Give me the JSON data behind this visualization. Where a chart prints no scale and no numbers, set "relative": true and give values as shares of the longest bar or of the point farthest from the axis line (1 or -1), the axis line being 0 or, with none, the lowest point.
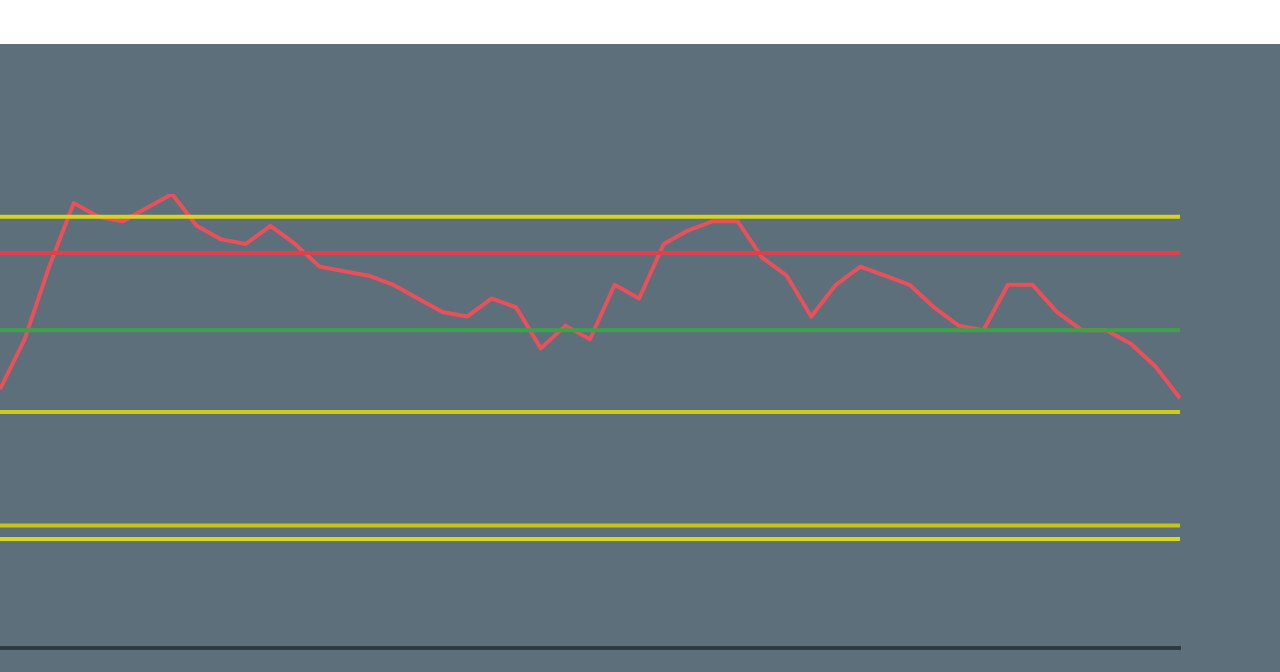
{
  "chart_data": {
    "type": "line",
    "relative": true,
    "legend": false,
    "marker": "none",
    "categories": [
      null,
      null,
      null,
      null,
      null,
      null,
      null,
      null,
      null,
      null,
      null,
      null,
      null,
      null,
      null,
      null,
      null,
      null,
      null,
      null,
      null,
      null,
      null,
      null,
      null,
      null,
      null,
      null,
      null,
      null,
      null,
      null,
      null,
      null,
      null,
      null,
      null,
      null,
      null,
      null,
      null,
      null,
      null,
      null,
      null,
      null,
      null,
      null,
      null
    ],
    "series": [
      {
        "color": "#d6d21e",
        "values": [
          0.95,
          0.95,
          0.95,
          0.95,
          0.95,
          0.95,
          0.95,
          0.95,
          0.95,
          0.95,
          0.95,
          0.95,
          0.95,
          0.95,
          0.95,
          0.95,
          0.95,
          0.95,
          0.95,
          0.95,
          0.95,
          0.95,
          0.95,
          0.95,
          0.95,
          0.95,
          0.95,
          0.95,
          0.95,
          0.95,
          0.95,
          0.95,
          0.95,
          0.95,
          0.95,
          0.95,
          0.95,
          0.95,
          0.95,
          0.95,
          0.95,
          0.95,
          0.95,
          0.95,
          0.95,
          0.95,
          0.95,
          0.95,
          0.95
        ]
      },
      {
        "color": "#e0404a",
        "values": [
          0.87,
          0.87,
          0.87,
          0.87,
          0.87,
          0.87,
          0.87,
          0.87,
          0.87,
          0.87,
          0.87,
          0.87,
          0.87,
          0.87,
          0.87,
          0.87,
          0.87,
          0.87,
          0.87,
          0.87,
          0.87,
          0.87,
          0.87,
          0.87,
          0.87,
          0.87,
          0.87,
          0.87,
          0.87,
          0.87,
          0.87,
          0.87,
          0.87,
          0.87,
          0.87,
          0.87,
          0.87,
          0.87,
          0.87,
          0.87,
          0.87,
          0.87,
          0.87,
          0.87,
          0.87,
          0.87,
          0.87,
          0.87,
          0.87
        ]
      },
      {
        "color": "#3aa548",
        "values": [
          0.7,
          0.7,
          0.7,
          0.7,
          0.7,
          0.7,
          0.7,
          0.7,
          0.7,
          0.7,
          0.7,
          0.7,
          0.7,
          0.7,
          0.7,
          0.7,
          0.7,
          0.7,
          0.7,
          0.7,
          0.7,
          0.7,
          0.7,
          0.7,
          0.7,
          0.7,
          0.7,
          0.7,
          0.7,
          0.7,
          0.7,
          0.7,
          0.7,
          0.7,
          0.7,
          0.7,
          0.7,
          0.7,
          0.7,
          0.7,
          0.7,
          0.7,
          0.7,
          0.7,
          0.7,
          0.7,
          0.7,
          0.7,
          0.7
        ]
      },
      {
        "color": "#cfcb1d",
        "values": [
          0.52,
          0.52,
          0.52,
          0.52,
          0.52,
          0.52,
          0.52,
          0.52,
          0.52,
          0.52,
          0.52,
          0.52,
          0.52,
          0.52,
          0.52,
          0.52,
          0.52,
          0.52,
          0.52,
          0.52,
          0.52,
          0.52,
          0.52,
          0.52,
          0.52,
          0.52,
          0.52,
          0.52,
          0.52,
          0.52,
          0.52,
          0.52,
          0.52,
          0.52,
          0.52,
          0.52,
          0.52,
          0.52,
          0.52,
          0.52,
          0.52,
          0.52,
          0.52,
          0.52,
          0.52,
          0.52,
          0.52,
          0.52,
          0.52
        ]
      },
      {
        "color": "#c9c41c",
        "values": [
          0.27,
          0.27,
          0.27,
          0.27,
          0.27,
          0.27,
          0.27,
          0.27,
          0.27,
          0.27,
          0.27,
          0.27,
          0.27,
          0.27,
          0.27,
          0.27,
          0.27,
          0.27,
          0.27,
          0.27,
          0.27,
          0.27,
          0.27,
          0.27,
          0.27,
          0.27,
          0.27,
          0.27,
          0.27,
          0.27,
          0.27,
          0.27,
          0.27,
          0.27,
          0.27,
          0.27,
          0.27,
          0.27,
          0.27,
          0.27,
          0.27,
          0.27,
          0.27,
          0.27,
          0.27,
          0.27,
          0.27,
          0.27,
          0.27
        ]
      },
      {
        "color": "#dcd820",
        "values": [
          0.24,
          0.24,
          0.24,
          0.24,
          0.24,
          0.24,
          0.24,
          0.24,
          0.24,
          0.24,
          0.24,
          0.24,
          0.24,
          0.24,
          0.24,
          0.24,
          0.24,
          0.24,
          0.24,
          0.24,
          0.24,
          0.24,
          0.24,
          0.24,
          0.24,
          0.24,
          0.24,
          0.24,
          0.24,
          0.24,
          0.24,
          0.24,
          0.24,
          0.24,
          0.24,
          0.24,
          0.24,
          0.24,
          0.24,
          0.24,
          0.24,
          0.24,
          0.24,
          0.24,
          0.24,
          0.24,
          0.24,
          0.24,
          0.24
        ]
      },
      {
        "color": "#e8505a",
        "values": [
          0.57,
          0.68,
          0.84,
          0.98,
          0.95,
          0.94,
          0.97,
          1,
          0.93,
          0.9,
          0.89,
          0.93,
          0.89,
          0.84,
          0.83,
          0.82,
          0.8,
          0.77,
          0.74,
          0.73,
          0.77,
          0.75,
          0.66,
          0.71,
          0.68,
          0.8,
          0.77,
          0.89,
          0.92,
          0.94,
          0.94,
          0.86,
          0.82,
          0.73,
          0.8,
          0.84,
          0.82,
          0.8,
          0.75,
          0.71,
          0.7,
          0.8,
          0.8,
          0.74,
          0.7,
          0.7,
          0.67,
          0.62,
          0.55
        ]
      }
    ]
  }
}
